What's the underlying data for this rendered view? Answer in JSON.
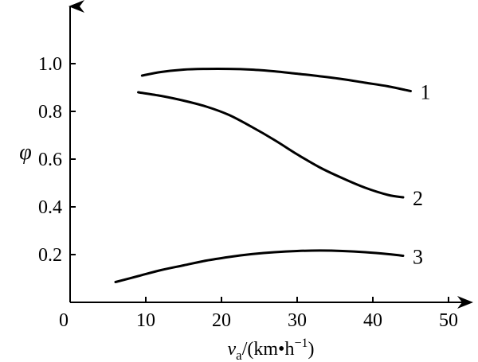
{
  "chart_data": {
    "type": "line",
    "xlabel": {
      "var": "v",
      "sub": "a",
      "unit_pre": "/(km•h",
      "unit_sup": "−1",
      "unit_post": ")"
    },
    "ylabel": "φ",
    "xlim": [
      0,
      50
    ],
    "ylim": [
      0,
      1.2
    ],
    "xticks": [
      0,
      10,
      20,
      30,
      40,
      50
    ],
    "xtick_labels": [
      "0",
      "10",
      "20",
      "30",
      "40",
      "50"
    ],
    "yticks": [
      0.2,
      0.4,
      0.6,
      0.8,
      1.0
    ],
    "ytick_labels": [
      "0.2",
      "0.4",
      "0.6",
      "0.8",
      "1.0"
    ],
    "grid": false,
    "series": [
      {
        "name": "1",
        "x": [
          9.5,
          12,
          15,
          18,
          21,
          24,
          27,
          30,
          33,
          36,
          39,
          42,
          45
        ],
        "y": [
          0.95,
          0.965,
          0.975,
          0.978,
          0.978,
          0.975,
          0.968,
          0.958,
          0.947,
          0.935,
          0.92,
          0.905,
          0.885
        ]
      },
      {
        "name": "2",
        "x": [
          9,
          12,
          15,
          18,
          21,
          24,
          27,
          30,
          33,
          36,
          39,
          42,
          44
        ],
        "y": [
          0.88,
          0.865,
          0.845,
          0.82,
          0.785,
          0.735,
          0.68,
          0.62,
          0.565,
          0.52,
          0.48,
          0.45,
          0.44
        ]
      },
      {
        "name": "3",
        "x": [
          6,
          9,
          12,
          15,
          18,
          21,
          24,
          27,
          30,
          33,
          36,
          39,
          42,
          44
        ],
        "y": [
          0.085,
          0.11,
          0.135,
          0.155,
          0.175,
          0.19,
          0.202,
          0.21,
          0.215,
          0.217,
          0.215,
          0.21,
          0.202,
          0.195
        ]
      }
    ]
  }
}
